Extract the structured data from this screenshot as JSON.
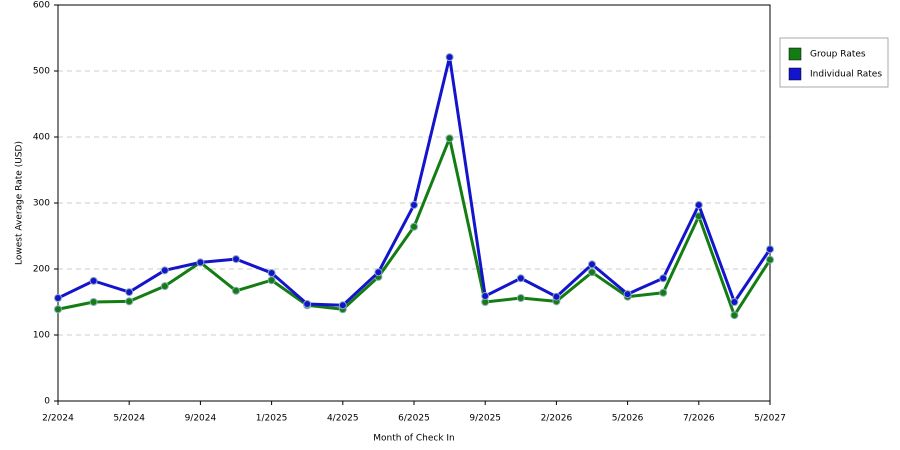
{
  "chart_data": {
    "type": "line",
    "x_label": "Month of Check In",
    "y_label": "Lowest Average Rate (USD)",
    "categories": [
      "2/2024",
      null,
      "5/2024",
      null,
      "9/2024",
      null,
      "1/2025",
      null,
      "4/2025",
      null,
      "6/2025",
      null,
      "9/2025",
      null,
      "2/2026",
      null,
      "5/2026",
      null,
      "7/2026",
      null,
      "5/2027"
    ],
    "series": [
      {
        "name": "Group Rates",
        "color": "#137d13",
        "values": [
          139,
          150,
          151,
          174,
          210,
          167,
          183,
          145,
          139,
          188,
          264,
          398,
          150,
          156,
          151,
          195,
          158,
          164,
          280,
          130,
          214
        ]
      },
      {
        "name": "Individual Rates",
        "color": "#1414cc",
        "values": [
          156,
          182,
          165,
          198,
          210,
          215,
          194,
          147,
          145,
          195,
          297,
          521,
          159,
          186,
          158,
          207,
          162,
          186,
          297,
          150,
          230
        ]
      }
    ],
    "ylim": [
      0,
      600
    ],
    "yticks": [
      0,
      100,
      200,
      300,
      400,
      500,
      600
    ],
    "grid": true,
    "legend": "right"
  }
}
